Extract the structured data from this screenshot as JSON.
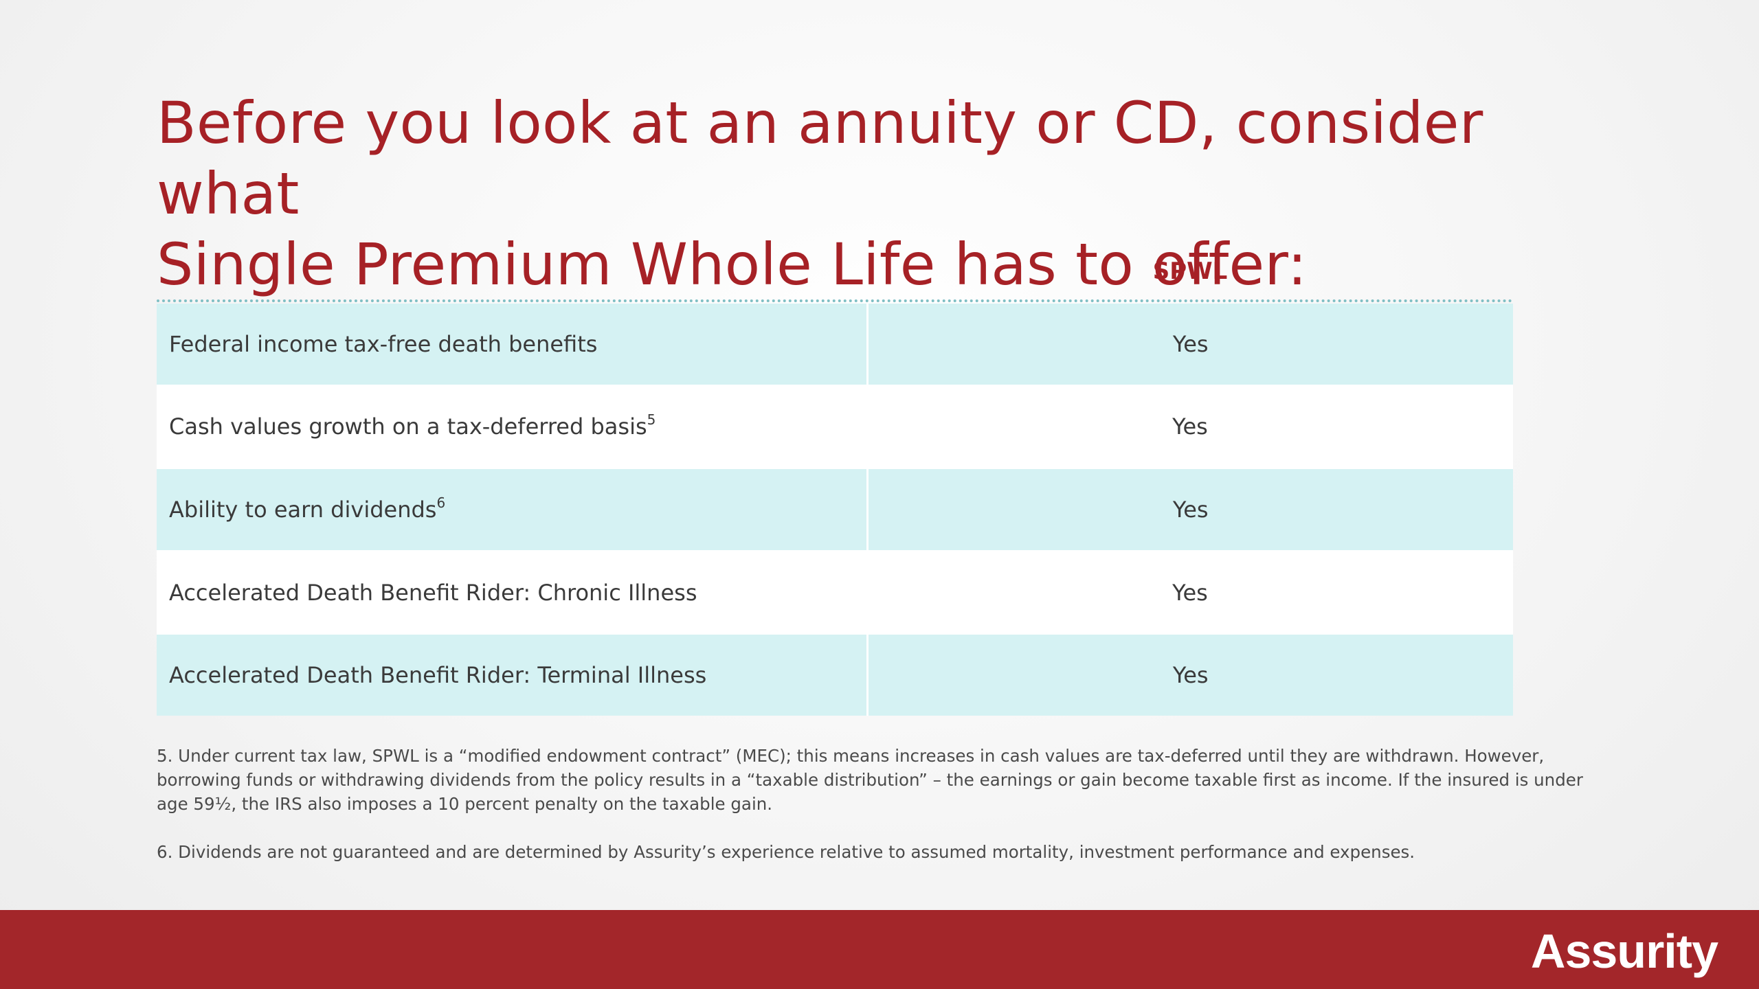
{
  "slide": {
    "title_line1": "Before you look at an annuity or CD, consider what",
    "title_line2": "Single Premium Whole Life has to offer:"
  },
  "table": {
    "column_header": "SPWL",
    "rows": [
      {
        "feature": "Federal income tax-free death benefits",
        "note": "",
        "value": "Yes"
      },
      {
        "feature": "Cash values growth on a tax-deferred basis",
        "note": "5",
        "value": "Yes"
      },
      {
        "feature": "Ability to earn dividends",
        "note": "6",
        "value": "Yes"
      },
      {
        "feature": "Accelerated Death Benefit Rider: Chronic Illness",
        "note": "",
        "value": "Yes"
      },
      {
        "feature": "Accelerated Death Benefit Rider: Terminal Illness",
        "note": "",
        "value": "Yes"
      }
    ]
  },
  "footnotes": [
    "5. Under current tax law, SPWL is a “modified endowment contract” (MEC); this means increases in cash values are tax-deferred until they are withdrawn. However, borrowing funds or withdrawing dividends from the policy results in a “taxable distribution” – the earnings or gain become taxable first as income. If the insured is under age 59½, the IRS also imposes a 10 percent penalty on the taxable gain.",
    "6. Dividends are not guaranteed and are determined by Assurity’s experience relative to assumed mortality, investment performance and expenses."
  ],
  "footer": {
    "logo_text": "Assurity"
  },
  "colors": {
    "brand_red": "#a62126",
    "row_shade": "#d5f2f3",
    "footer_bar": "#a3262a"
  }
}
